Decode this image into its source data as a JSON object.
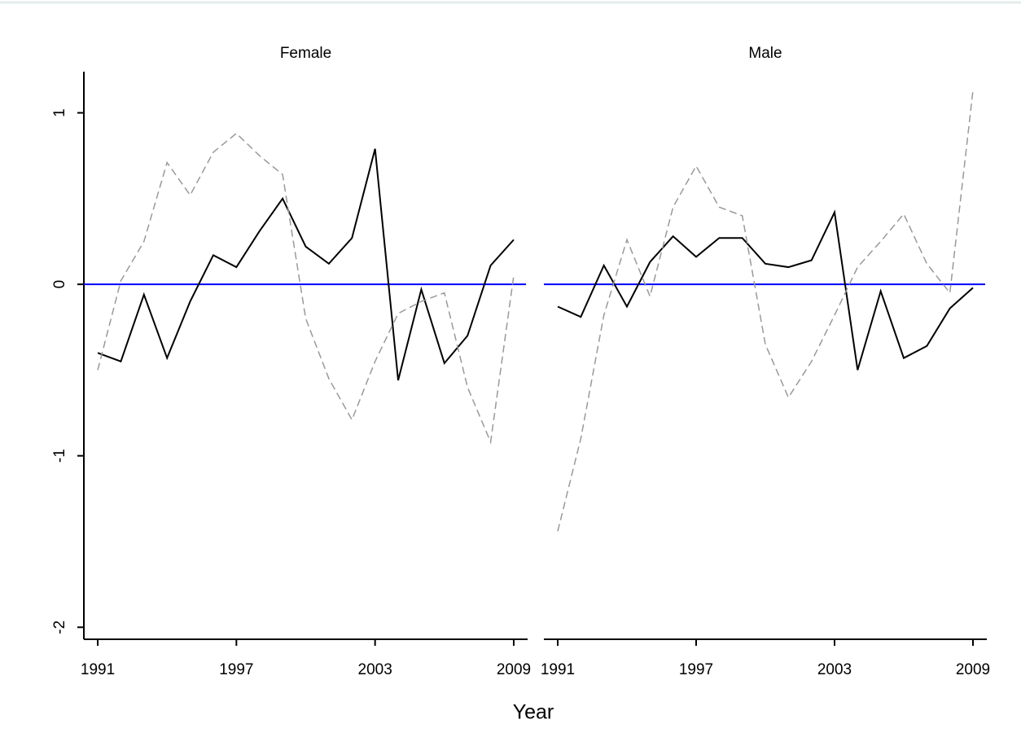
{
  "chart_data": [
    {
      "type": "line",
      "title": "Female",
      "x": [
        1991,
        1992,
        1993,
        1994,
        1995,
        1996,
        1997,
        1998,
        1999,
        2000,
        2001,
        2002,
        2003,
        2004,
        2005,
        2006,
        2007,
        2008,
        2009
      ],
      "series": [
        {
          "color": "#000000",
          "dashed": false,
          "values": [
            -0.4,
            -0.45,
            -0.06,
            -0.43,
            -0.1,
            0.17,
            0.1,
            0.31,
            0.5,
            0.22,
            0.12,
            0.27,
            0.79,
            -0.56,
            -0.03,
            -0.46,
            -0.3,
            0.11,
            0.26
          ]
        },
        {
          "color": "#999999",
          "dashed": true,
          "values": [
            -0.5,
            0.02,
            0.25,
            0.71,
            0.52,
            0.77,
            0.88,
            0.75,
            0.64,
            -0.2,
            -0.55,
            -0.79,
            -0.45,
            -0.17,
            -0.1,
            -0.05,
            -0.6,
            -0.92,
            0.05
          ]
        }
      ],
      "hline": 0,
      "hline_color": "#0000ff",
      "xlim": [
        1990.4,
        2009.6
      ],
      "xticks": [
        1991,
        1997,
        2003,
        2009
      ],
      "ylim": [
        -2.07,
        1.24
      ],
      "yticks": [
        -2,
        -1,
        0,
        1
      ]
    },
    {
      "type": "line",
      "title": "Male",
      "x": [
        1991,
        1992,
        1993,
        1994,
        1995,
        1996,
        1997,
        1998,
        1999,
        2000,
        2001,
        2002,
        2003,
        2004,
        2005,
        2006,
        2007,
        2008,
        2009
      ],
      "series": [
        {
          "color": "#000000",
          "dashed": false,
          "values": [
            -0.13,
            -0.19,
            0.11,
            -0.13,
            0.13,
            0.28,
            0.16,
            0.27,
            0.27,
            0.12,
            0.1,
            0.14,
            0.42,
            -0.5,
            -0.04,
            -0.43,
            -0.36,
            -0.14,
            -0.02
          ]
        },
        {
          "color": "#999999",
          "dashed": true,
          "values": [
            -1.44,
            -0.9,
            -0.18,
            0.26,
            -0.07,
            0.45,
            0.69,
            0.45,
            0.4,
            -0.35,
            -0.66,
            -0.45,
            -0.18,
            0.1,
            0.25,
            0.41,
            0.12,
            -0.05,
            1.13
          ]
        }
      ],
      "hline": 0,
      "hline_color": "#0000ff",
      "xlim": [
        1990.4,
        2009.6
      ],
      "xticks": [
        1991,
        1997,
        2003,
        2009
      ],
      "ylim": [
        -2.07,
        1.24
      ]
    }
  ],
  "xlabel": "Year"
}
